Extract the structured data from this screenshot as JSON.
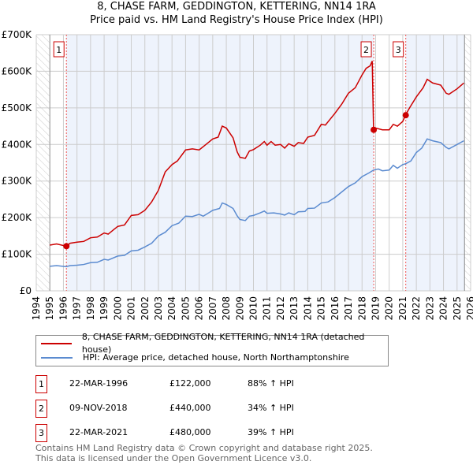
{
  "chart_data": {
    "type": "line",
    "title": "8, CHASE FARM, GEDDINGTON, KETTERING, NN14 1RA",
    "subtitle": "Price paid vs. HM Land Registry's House Price Index (HPI)",
    "xlim": [
      1994,
      2026
    ],
    "ylim": [
      0,
      700000
    ],
    "x_ticks": [
      "1994",
      "1995",
      "1996",
      "1997",
      "1998",
      "1999",
      "2000",
      "2001",
      "2002",
      "2003",
      "2004",
      "2005",
      "2006",
      "2007",
      "2008",
      "2009",
      "2010",
      "2011",
      "2012",
      "2013",
      "2014",
      "2015",
      "2016",
      "2017",
      "2018",
      "2019",
      "2020",
      "2021",
      "2022",
      "2023",
      "2024",
      "2025",
      "2026"
    ],
    "y_ticks": [
      {
        "v": 0,
        "label": "£0"
      },
      {
        "v": 100000,
        "label": "£100K"
      },
      {
        "v": 200000,
        "label": "£200K"
      },
      {
        "v": 300000,
        "label": "£300K"
      },
      {
        "v": 400000,
        "label": "£400K"
      },
      {
        "v": 500000,
        "label": "£500K"
      },
      {
        "v": 600000,
        "label": "£600K"
      },
      {
        "v": 700000,
        "label": "£700K"
      }
    ],
    "grid": true,
    "series": [
      {
        "name": "8, CHASE FARM, GEDDINGTON, KETTERING, NN14 1RA (detached house)",
        "color": "#cc0000",
        "points": [
          [
            1995,
            125000
          ],
          [
            1995.5,
            128000
          ],
          [
            1996.2,
            122000
          ],
          [
            1996.5,
            130000
          ],
          [
            1997,
            133000
          ],
          [
            1997.5,
            135000
          ],
          [
            1998,
            145000
          ],
          [
            1998.5,
            147000
          ],
          [
            1999,
            158000
          ],
          [
            1999.3,
            155000
          ],
          [
            1999.7,
            167000
          ],
          [
            2000,
            176000
          ],
          [
            2000.5,
            180000
          ],
          [
            2001,
            206000
          ],
          [
            2001.5,
            208000
          ],
          [
            2002,
            220000
          ],
          [
            2002.5,
            243000
          ],
          [
            2003,
            275000
          ],
          [
            2003.5,
            325000
          ],
          [
            2004,
            345000
          ],
          [
            2004.4,
            355000
          ],
          [
            2005,
            385000
          ],
          [
            2005.5,
            388000
          ],
          [
            2006,
            385000
          ],
          [
            2006.5,
            400000
          ],
          [
            2007,
            415000
          ],
          [
            2007.4,
            420000
          ],
          [
            2007.7,
            450000
          ],
          [
            2008,
            445000
          ],
          [
            2008.5,
            418000
          ],
          [
            2008.8,
            380000
          ],
          [
            2009,
            365000
          ],
          [
            2009.4,
            362000
          ],
          [
            2009.7,
            382000
          ],
          [
            2010,
            386000
          ],
          [
            2010.5,
            398000
          ],
          [
            2010.8,
            408000
          ],
          [
            2011,
            398000
          ],
          [
            2011.3,
            408000
          ],
          [
            2011.6,
            398000
          ],
          [
            2012,
            400000
          ],
          [
            2012.3,
            390000
          ],
          [
            2012.6,
            402000
          ],
          [
            2013,
            395000
          ],
          [
            2013.3,
            405000
          ],
          [
            2013.7,
            403000
          ],
          [
            2014,
            420000
          ],
          [
            2014.5,
            425000
          ],
          [
            2015,
            455000
          ],
          [
            2015.3,
            453000
          ],
          [
            2016,
            485000
          ],
          [
            2016.5,
            510000
          ],
          [
            2017,
            540000
          ],
          [
            2017.5,
            555000
          ],
          [
            2018,
            590000
          ],
          [
            2018.3,
            608000
          ],
          [
            2018.6,
            615000
          ],
          [
            2018.75,
            628000
          ],
          [
            2018.85,
            440000
          ],
          [
            2019,
            445000
          ],
          [
            2019.5,
            440000
          ],
          [
            2020,
            440000
          ],
          [
            2020.3,
            455000
          ],
          [
            2020.6,
            450000
          ],
          [
            2021,
            463000
          ],
          [
            2021.2,
            480000
          ],
          [
            2021.5,
            500000
          ],
          [
            2022,
            530000
          ],
          [
            2022.5,
            555000
          ],
          [
            2022.8,
            578000
          ],
          [
            2023.2,
            568000
          ],
          [
            2023.8,
            562000
          ],
          [
            2024.2,
            540000
          ],
          [
            2024.4,
            537000
          ],
          [
            2025,
            552000
          ],
          [
            2025.5,
            568000
          ]
        ]
      },
      {
        "name": "HPI: Average price, detached house, North Northamptonshire",
        "color": "#5b8bd0",
        "points": [
          [
            1995,
            67000
          ],
          [
            1995.5,
            69000
          ],
          [
            1996.2,
            66000
          ],
          [
            1996.5,
            69000
          ],
          [
            1997,
            70000
          ],
          [
            1997.5,
            72000
          ],
          [
            1998,
            77000
          ],
          [
            1998.5,
            78000
          ],
          [
            1999,
            86000
          ],
          [
            1999.3,
            84000
          ],
          [
            2000,
            95000
          ],
          [
            2000.5,
            97000
          ],
          [
            2001,
            109000
          ],
          [
            2001.5,
            111000
          ],
          [
            2002,
            120000
          ],
          [
            2002.5,
            130000
          ],
          [
            2003,
            150000
          ],
          [
            2003.5,
            160000
          ],
          [
            2004,
            178000
          ],
          [
            2004.5,
            185000
          ],
          [
            2005,
            204000
          ],
          [
            2005.5,
            203000
          ],
          [
            2006,
            209000
          ],
          [
            2006.3,
            204000
          ],
          [
            2006.7,
            213000
          ],
          [
            2007,
            220000
          ],
          [
            2007.5,
            225000
          ],
          [
            2007.7,
            240000
          ],
          [
            2008,
            236000
          ],
          [
            2008.5,
            225000
          ],
          [
            2008.8,
            205000
          ],
          [
            2009,
            195000
          ],
          [
            2009.4,
            192000
          ],
          [
            2009.7,
            204000
          ],
          [
            2010,
            206000
          ],
          [
            2010.5,
            213000
          ],
          [
            2010.8,
            218000
          ],
          [
            2011,
            212000
          ],
          [
            2011.5,
            213000
          ],
          [
            2012,
            210000
          ],
          [
            2012.3,
            207000
          ],
          [
            2012.6,
            213000
          ],
          [
            2013,
            208000
          ],
          [
            2013.3,
            216000
          ],
          [
            2013.8,
            217000
          ],
          [
            2014,
            225000
          ],
          [
            2014.5,
            226000
          ],
          [
            2015,
            240000
          ],
          [
            2015.5,
            243000
          ],
          [
            2016,
            255000
          ],
          [
            2016.5,
            270000
          ],
          [
            2017,
            285000
          ],
          [
            2017.5,
            295000
          ],
          [
            2018,
            312000
          ],
          [
            2018.5,
            322000
          ],
          [
            2018.85,
            330000
          ],
          [
            2019.2,
            333000
          ],
          [
            2019.5,
            328000
          ],
          [
            2020,
            330000
          ],
          [
            2020.3,
            343000
          ],
          [
            2020.6,
            335000
          ],
          [
            2021,
            345000
          ],
          [
            2021.2,
            347000
          ],
          [
            2021.6,
            355000
          ],
          [
            2022,
            378000
          ],
          [
            2022.4,
            390000
          ],
          [
            2022.8,
            415000
          ],
          [
            2023.2,
            410000
          ],
          [
            2023.8,
            405000
          ],
          [
            2024.2,
            392000
          ],
          [
            2024.4,
            388000
          ],
          [
            2025,
            400000
          ],
          [
            2025.5,
            410000
          ]
        ]
      }
    ],
    "sales": [
      {
        "id": "1",
        "x": 1996.22,
        "y": 122000,
        "date": "22-MAR-1996",
        "price": "£122,000",
        "hpi": "88% ↑ HPI"
      },
      {
        "id": "2",
        "x": 2018.86,
        "y": 440000,
        "date": "09-NOV-2018",
        "price": "£440,000",
        "hpi": "34% ↑ HPI"
      },
      {
        "id": "3",
        "x": 2021.22,
        "y": 480000,
        "date": "22-MAR-2021",
        "price": "£480,000",
        "hpi": "39% ↑ HPI"
      }
    ],
    "legend_placement": "below"
  },
  "footer": {
    "line1": "Contains HM Land Registry data © Crown copyright and database right 2025.",
    "line2": "This data is licensed under the Open Government Licence v3.0."
  }
}
